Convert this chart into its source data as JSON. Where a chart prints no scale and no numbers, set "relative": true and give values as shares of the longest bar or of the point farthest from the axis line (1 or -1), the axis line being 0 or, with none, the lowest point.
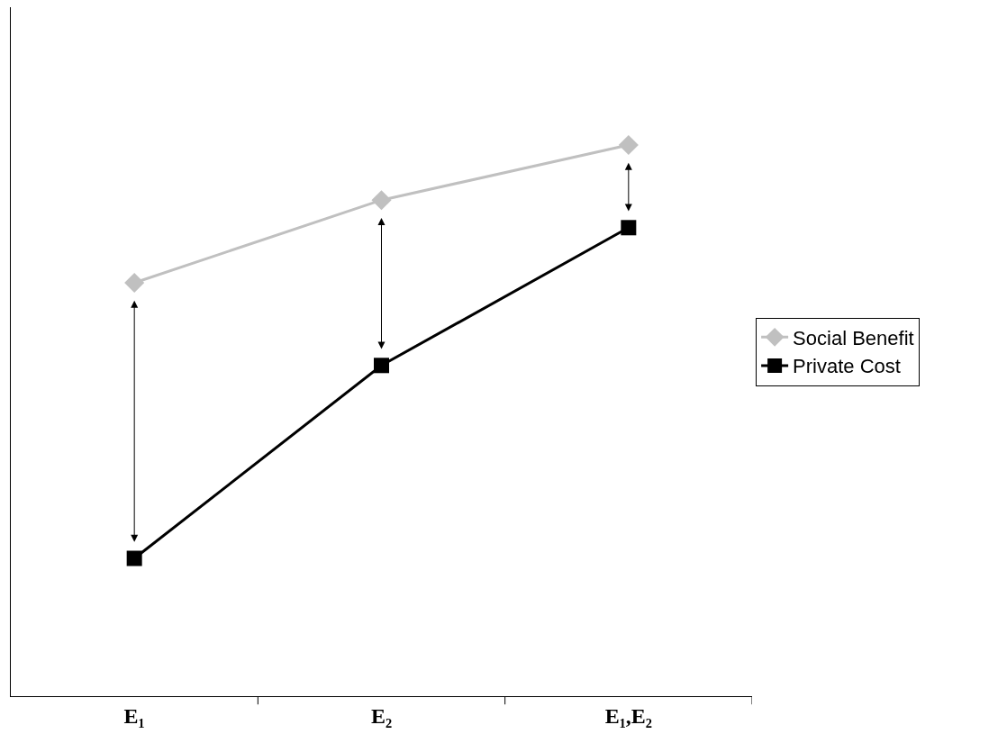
{
  "chart_data": {
    "type": "line",
    "relative": true,
    "categories": [
      "E₁",
      "E₂",
      "E₁,E₂"
    ],
    "series": [
      {
        "name": "Social Benefit",
        "color": "#c0c0c0",
        "marker": "diamond",
        "values": [
          0.75,
          0.9,
          1
        ]
      },
      {
        "name": "Private Cost",
        "color": "#000000",
        "marker": "square",
        "values": [
          0.25,
          0.6,
          0.85
        ]
      }
    ],
    "legend": "right",
    "grid": false
  }
}
